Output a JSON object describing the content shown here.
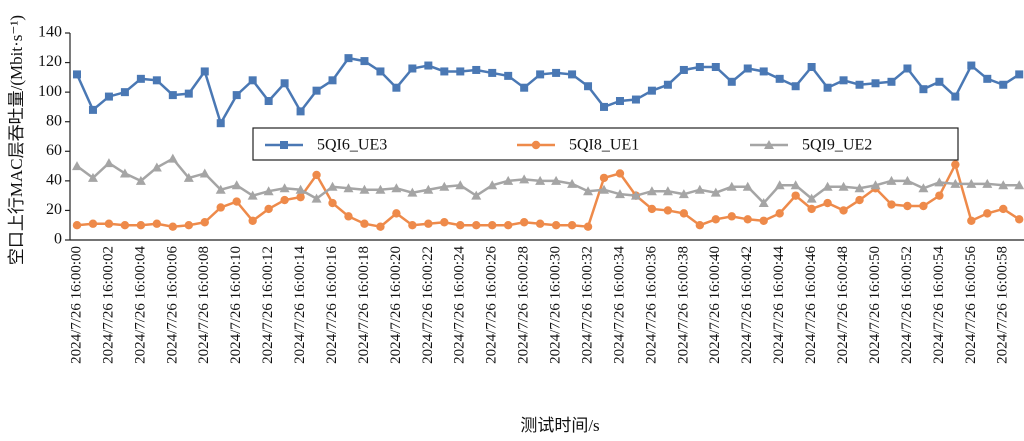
{
  "chart_data": {
    "type": "line",
    "y_label": "空口上行MAC层吞吐量/(Mbit·s⁻¹)",
    "x_label": "测试时间/s",
    "categories": [
      "2024/7/26 16:00:00",
      null,
      "2024/7/26 16:00:02",
      null,
      "2024/7/26 16:00:04",
      null,
      "2024/7/26 16:00:06",
      null,
      "2024/7/26 16:00:08",
      null,
      "2024/7/26 16:00:10",
      null,
      "2024/7/26 16:00:12",
      null,
      "2024/7/26 16:00:14",
      null,
      "2024/7/26 16:00:16",
      null,
      "2024/7/26 16:00:18",
      null,
      "2024/7/26 16:00:20",
      null,
      "2024/7/26 16:00:22",
      null,
      "2024/7/26 16:00:24",
      null,
      "2024/7/26 16:00:26",
      null,
      "2024/7/26 16:00:28",
      null,
      "2024/7/26 16:00:30",
      null,
      "2024/7/26 16:00:32",
      null,
      "2024/7/26 16:00:34",
      null,
      "2024/7/26 16:00:36",
      null,
      "2024/7/26 16:00:38",
      null,
      "2024/7/26 16:00:40",
      null,
      "2024/7/26 16:00:42",
      null,
      "2024/7/26 16:00:44",
      null,
      "2024/7/26 16:00:46",
      null,
      "2024/7/26 16:00:48",
      null,
      "2024/7/26 16:00:50",
      null,
      "2024/7/26 16:00:52",
      null,
      "2024/7/26 16:00:54",
      null,
      "2024/7/26 16:00:56",
      null,
      "2024/7/26 16:00:58",
      null
    ],
    "series": [
      {
        "name": "5QI6_UE3",
        "color": "#4a78b4",
        "marker": "square",
        "values": [
          112,
          88,
          97,
          100,
          109,
          108,
          98,
          99,
          114,
          79,
          98,
          108,
          94,
          106,
          87,
          101,
          108,
          123,
          121,
          114,
          103,
          116,
          118,
          114,
          114,
          115,
          113,
          111,
          103,
          112,
          113,
          112,
          104,
          90,
          94,
          95,
          101,
          105,
          115,
          117,
          117,
          107,
          116,
          114,
          109,
          104,
          117,
          103,
          108,
          105,
          106,
          107,
          116,
          102,
          107,
          97,
          118,
          109,
          105,
          112
        ]
      },
      {
        "name": "5QI8_UE1",
        "color": "#ee8a4a",
        "marker": "circle",
        "values": [
          10,
          11,
          11,
          10,
          10,
          11,
          9,
          10,
          12,
          22,
          26,
          13,
          21,
          27,
          29,
          44,
          25,
          16,
          11,
          9,
          18,
          10,
          11,
          12,
          10,
          10,
          10,
          10,
          12,
          11,
          10,
          10,
          9,
          42,
          45,
          30,
          21,
          20,
          18,
          10,
          14,
          16,
          14,
          13,
          18,
          30,
          21,
          25,
          20,
          27,
          35,
          24,
          23,
          23,
          30,
          51,
          13,
          18,
          21,
          14
        ]
      },
      {
        "name": "5QI9_UE2",
        "color": "#a5a5a5",
        "marker": "triangle",
        "values": [
          50,
          42,
          52,
          45,
          40,
          49,
          55,
          42,
          45,
          34,
          37,
          30,
          33,
          35,
          34,
          28,
          36,
          35,
          34,
          34,
          35,
          32,
          34,
          36,
          37,
          30,
          37,
          40,
          41,
          40,
          40,
          38,
          33,
          34,
          31,
          30,
          33,
          33,
          31,
          34,
          32,
          36,
          36,
          25,
          37,
          37,
          28,
          36,
          36,
          35,
          37,
          40,
          40,
          35,
          39,
          38,
          38,
          38,
          37,
          37
        ]
      }
    ],
    "ylim": [
      0,
      140
    ],
    "yticks": [
      0,
      20,
      40,
      60,
      80,
      100,
      120,
      140
    ],
    "grid": false
  }
}
